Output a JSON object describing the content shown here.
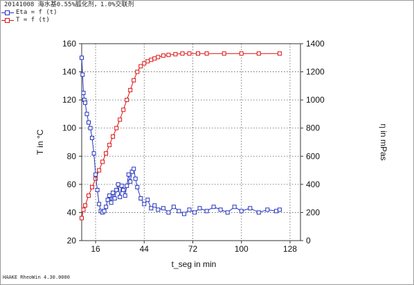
{
  "legend": {
    "title": "20141008 海水基0.55%胍化剂，1.0%交联剂",
    "entries": [
      {
        "label": "Eta = f (t)",
        "color": "#2233bb"
      },
      {
        "label": "T = f (t)",
        "color": "#dd1111"
      }
    ]
  },
  "footer": "HAAKE RheoWin 4.30.0000",
  "chart_data": {
    "type": "scatter",
    "x_axis": {
      "label": "t_seg in min",
      "range": [
        8,
        134
      ],
      "ticks": [
        16,
        44,
        72,
        100,
        128
      ]
    },
    "y_left": {
      "label": "T in °C",
      "range": [
        20,
        160
      ],
      "ticks": [
        20,
        40,
        60,
        80,
        100,
        120,
        140,
        160
      ]
    },
    "y_right": {
      "label": "η in mPas",
      "range": [
        0,
        1400
      ],
      "ticks": [
        0,
        200,
        400,
        600,
        800,
        1000,
        1200,
        1400
      ]
    },
    "grid": true,
    "series": [
      {
        "name": "T = f (t)",
        "axis": "left",
        "color": "#dd1111",
        "marker": "square",
        "x": [
          8,
          9,
          10,
          12,
          14,
          16,
          18,
          20,
          22,
          24,
          26,
          28,
          30,
          32,
          34,
          36,
          38,
          40,
          42,
          44,
          46,
          48,
          50,
          52,
          55,
          58,
          62,
          66,
          70,
          75,
          80,
          90,
          100,
          110,
          122
        ],
        "y": [
          36,
          42,
          45,
          52,
          58,
          64,
          70,
          76,
          82,
          88,
          94,
          100,
          106,
          113,
          120,
          127,
          134,
          140,
          144,
          146,
          147.5,
          148.5,
          149.5,
          150.5,
          151.5,
          152,
          152.5,
          153,
          153,
          153,
          153,
          153,
          153,
          153,
          153
        ]
      },
      {
        "name": "Eta = f (t)",
        "axis": "right",
        "color": "#2233bb",
        "marker": "square",
        "x": [
          8,
          8.5,
          9,
          9.5,
          10,
          11,
          12,
          13,
          14,
          15,
          16,
          17,
          18,
          19,
          20,
          21,
          22,
          23,
          24,
          25,
          26,
          27,
          28,
          29,
          30,
          31,
          32,
          33,
          34,
          35,
          36,
          37,
          38,
          39,
          40,
          42,
          44,
          46,
          48,
          50,
          52,
          55,
          58,
          61,
          64,
          67,
          70,
          73,
          76,
          80,
          84,
          88,
          92,
          96,
          100,
          105,
          110,
          115,
          120,
          122
        ],
        "y": [
          1300,
          1180,
          1050,
          1000,
          980,
          900,
          840,
          800,
          730,
          620,
          470,
          360,
          260,
          210,
          200,
          210,
          240,
          290,
          320,
          270,
          340,
          300,
          360,
          400,
          310,
          390,
          360,
          320,
          390,
          470,
          420,
          490,
          510,
          440,
          380,
          300,
          260,
          290,
          230,
          250,
          220,
          230,
          200,
          240,
          210,
          190,
          220,
          200,
          230,
          210,
          240,
          220,
          200,
          240,
          210,
          230,
          200,
          220,
          210,
          220
        ]
      }
    ]
  }
}
